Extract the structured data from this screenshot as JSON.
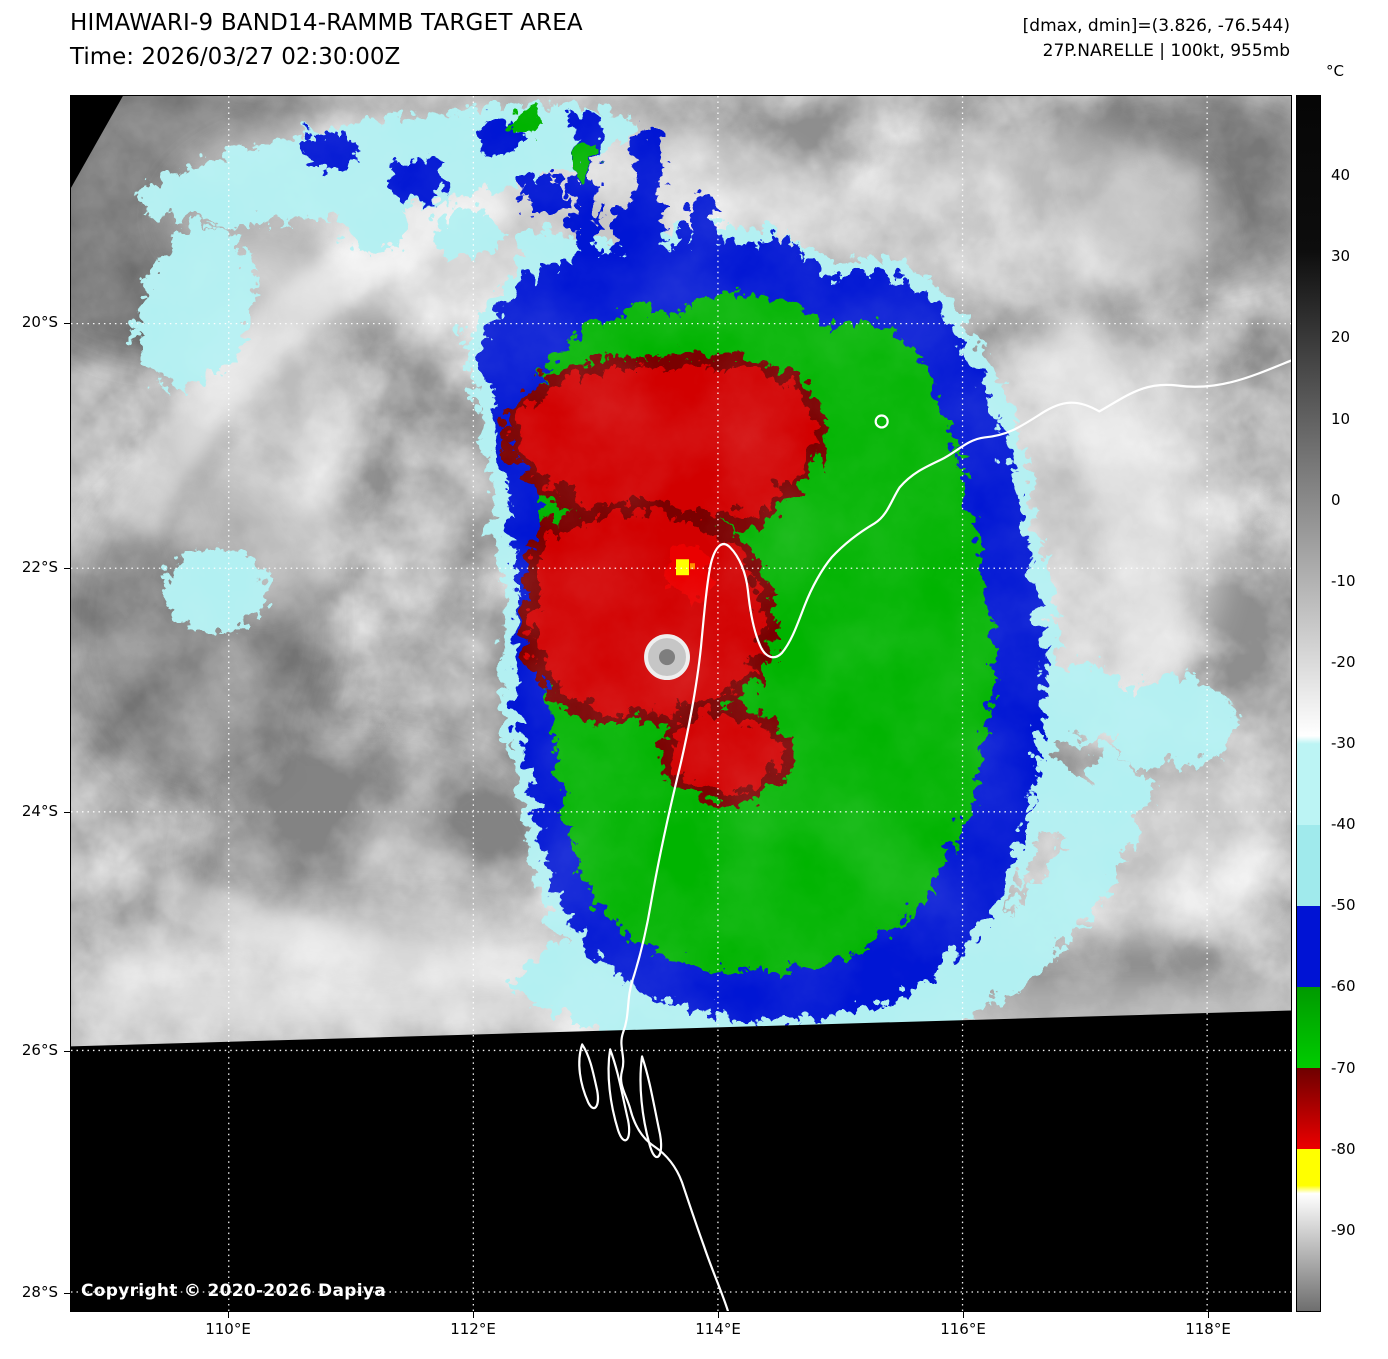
{
  "header": {
    "title": "HIMAWARI-9 BAND14-RAMMB TARGET AREA",
    "time": "Time: 2026/03/27 02:30:00Z",
    "dmax_dmin": "[dmax, dmin]=(3.826, -76.544)",
    "storm_info": "27P.NARELLE | 100kt, 955mb"
  },
  "colorbar": {
    "unit_label": "°C",
    "tick_labels": [
      "40",
      "30",
      "20",
      "10",
      "0",
      "-10",
      "-20",
      "-30",
      "-40",
      "-50",
      "-60",
      "-70",
      "-80",
      "-90"
    ],
    "stops": [
      {
        "temp": 50,
        "color": "#060606"
      },
      {
        "temp": 31,
        "color": "#0d0d0d"
      },
      {
        "temp": -29,
        "color": "#ffffff"
      },
      {
        "temp": -30,
        "color": "#bcf4f4"
      },
      {
        "temp": -40,
        "color": "#bcf4f4"
      },
      {
        "temp": -40,
        "color": "#a0eaec"
      },
      {
        "temp": -50,
        "color": "#a0eaec"
      },
      {
        "temp": -50,
        "color": "#0013d4"
      },
      {
        "temp": -60,
        "color": "#0013d4"
      },
      {
        "temp": -60,
        "color": "#009a00"
      },
      {
        "temp": -70,
        "color": "#00cc00"
      },
      {
        "temp": -70,
        "color": "#6e0000"
      },
      {
        "temp": -80,
        "color": "#ec0000"
      },
      {
        "temp": -80,
        "color": "#ffff00"
      },
      {
        "temp": -84.5,
        "color": "#ffff00"
      },
      {
        "temp": -85.5,
        "color": "#ffffff"
      },
      {
        "temp": -100,
        "color": "#6e6e6e"
      }
    ]
  },
  "map": {
    "lat_tick_labels": [
      "20°S",
      "22°S",
      "24°S",
      "26°S",
      "28°S"
    ],
    "lon_tick_labels": [
      "110°E",
      "112°E",
      "114°E",
      "116°E",
      "118°E"
    ],
    "copyright": "Copyright © 2020-2026 Dapiya"
  },
  "legend_colors": {
    "cyan_band": "#b2f0f2",
    "blue_band": "#0013d4",
    "green_band": "#00b400",
    "red_band": "#d20000",
    "yellow_band": "#ffff00"
  }
}
